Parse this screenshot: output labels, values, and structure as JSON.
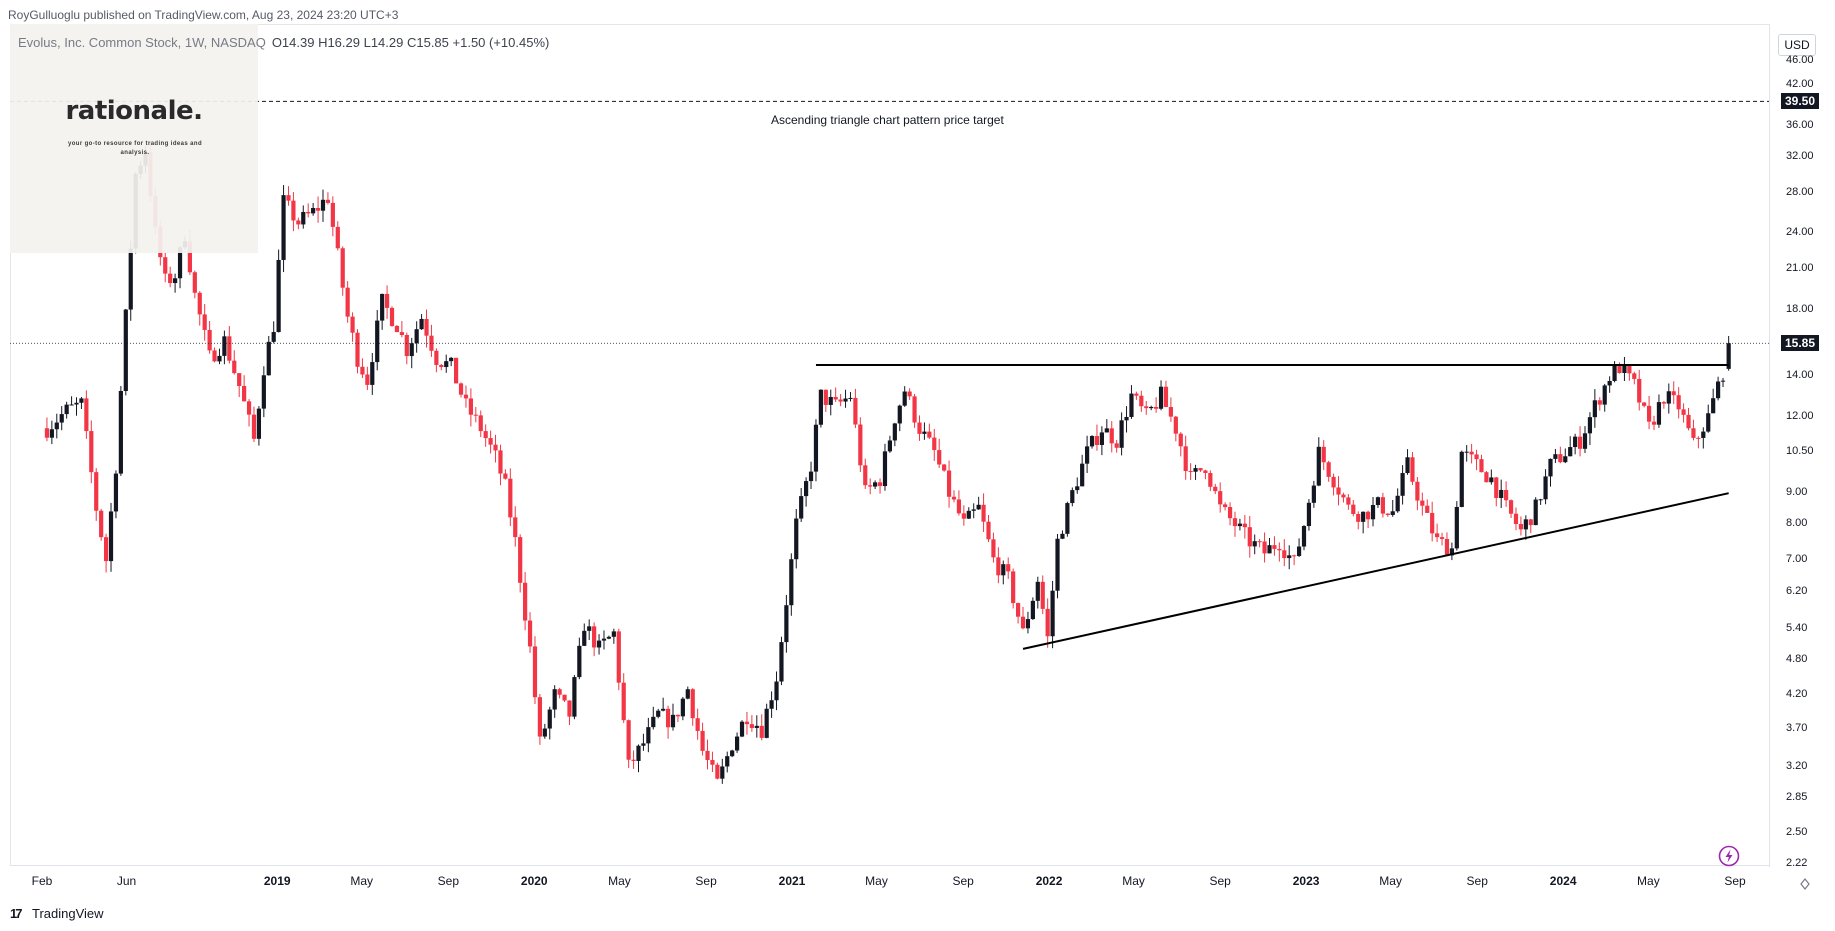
{
  "header": {
    "published_text": "RoyGulluoglu published on TradingView.com, Aug 23, 2024 23:20 UTC+3"
  },
  "symbol": {
    "name_text": "Evolus, Inc. Common Stock, 1W, NASDAQ",
    "ohlc_text": "O14.39  H16.29  L14.29  C15.85  +1.50 (+10.45%)"
  },
  "currency": "USD",
  "brand": {
    "name": "rationale.",
    "tagline": "your go-to resource for trading ideas and analysis."
  },
  "footer": {
    "logo_mark": "17",
    "logo_text": "TradingView"
  },
  "icons": {
    "settings": "auto-scale-icon",
    "alert": "lightning-bolt-icon",
    "logo": "tradingview-logo-icon"
  },
  "colors": {
    "up": "#131722",
    "down": "#f23645",
    "line": "#000000",
    "tag_bg": "#131722"
  },
  "annotations": {
    "target_label": "Ascending triangle chart pattern price target",
    "target_price": "39.50",
    "last_price": "15.85"
  },
  "chart_data": {
    "type": "candlestick",
    "scale": "log",
    "interval": "1W",
    "ylim": [
      2.1,
      50
    ],
    "y_ticks": [
      "46.00",
      "42.00",
      "36.00",
      "32.00",
      "28.00",
      "24.00",
      "21.00",
      "18.00",
      "14.00",
      "12.00",
      "10.50",
      "9.00",
      "8.00",
      "7.00",
      "6.20",
      "5.40",
      "4.80",
      "4.20",
      "3.70",
      "3.20",
      "2.85",
      "2.50",
      "2.22"
    ],
    "x_ticks": [
      {
        "label": "Feb",
        "date": "2018-02-01",
        "bold": false
      },
      {
        "label": "Jun",
        "date": "2018-06-01",
        "bold": false
      },
      {
        "label": "2019",
        "date": "2019-01-01",
        "bold": true
      },
      {
        "label": "May",
        "date": "2019-05-01",
        "bold": false
      },
      {
        "label": "Sep",
        "date": "2019-09-01",
        "bold": false
      },
      {
        "label": "2020",
        "date": "2020-01-01",
        "bold": true
      },
      {
        "label": "May",
        "date": "2020-05-01",
        "bold": false
      },
      {
        "label": "Sep",
        "date": "2020-09-01",
        "bold": false
      },
      {
        "label": "2021",
        "date": "2021-01-01",
        "bold": true
      },
      {
        "label": "May",
        "date": "2021-05-01",
        "bold": false
      },
      {
        "label": "Sep",
        "date": "2021-09-01",
        "bold": false
      },
      {
        "label": "2022",
        "date": "2022-01-01",
        "bold": true
      },
      {
        "label": "May",
        "date": "2022-05-01",
        "bold": false
      },
      {
        "label": "Sep",
        "date": "2022-09-01",
        "bold": false
      },
      {
        "label": "2023",
        "date": "2023-01-01",
        "bold": true
      },
      {
        "label": "May",
        "date": "2023-05-01",
        "bold": false
      },
      {
        "label": "Sep",
        "date": "2023-09-01",
        "bold": false
      },
      {
        "label": "2024",
        "date": "2024-01-01",
        "bold": true
      },
      {
        "label": "May",
        "date": "2024-05-01",
        "bold": false
      },
      {
        "label": "Sep",
        "date": "2024-09-01",
        "bold": false
      }
    ],
    "close_path": [
      [
        "2018-02-08",
        11.5
      ],
      [
        "2018-03-08",
        12.3
      ],
      [
        "2018-03-29",
        12.6
      ],
      [
        "2018-04-19",
        8.5
      ],
      [
        "2018-05-03",
        7.0
      ],
      [
        "2018-05-17",
        10.0
      ],
      [
        "2018-05-31",
        17.5
      ],
      [
        "2018-06-14",
        30.0
      ],
      [
        "2018-06-28",
        33.0
      ],
      [
        "2018-07-12",
        24.0
      ],
      [
        "2018-07-26",
        20.0
      ],
      [
        "2018-08-09",
        20.5
      ],
      [
        "2018-08-23",
        24.0
      ],
      [
        "2018-09-06",
        19.0
      ],
      [
        "2018-09-27",
        15.0
      ],
      [
        "2018-10-18",
        16.0
      ],
      [
        "2018-11-08",
        13.5
      ],
      [
        "2018-11-29",
        11.0
      ],
      [
        "2018-12-13",
        14.5
      ],
      [
        "2018-12-27",
        17.0
      ],
      [
        "2019-01-10",
        27.0
      ],
      [
        "2019-01-31",
        25.0
      ],
      [
        "2019-02-21",
        26.0
      ],
      [
        "2019-03-14",
        27.5
      ],
      [
        "2019-03-28",
        22.0
      ],
      [
        "2019-04-11",
        17.5
      ],
      [
        "2019-04-25",
        15.0
      ],
      [
        "2019-05-09",
        13.8
      ],
      [
        "2019-05-30",
        18.5
      ],
      [
        "2019-06-20",
        17.0
      ],
      [
        "2019-07-04",
        15.5
      ],
      [
        "2019-07-25",
        17.5
      ],
      [
        "2019-08-15",
        15.0
      ],
      [
        "2019-09-05",
        14.5
      ],
      [
        "2019-09-26",
        12.5
      ],
      [
        "2019-10-17",
        11.5
      ],
      [
        "2019-11-07",
        10.3
      ],
      [
        "2019-11-21",
        9.2
      ],
      [
        "2019-12-05",
        7.5
      ],
      [
        "2019-12-26",
        5.0
      ],
      [
        "2020-01-09",
        3.5
      ],
      [
        "2020-01-30",
        4.2
      ],
      [
        "2020-02-20",
        3.9
      ],
      [
        "2020-03-12",
        5.5
      ],
      [
        "2020-04-02",
        5.0
      ],
      [
        "2020-04-23",
        5.3
      ],
      [
        "2020-05-14",
        3.2
      ],
      [
        "2020-06-04",
        3.5
      ],
      [
        "2020-06-25",
        3.9
      ],
      [
        "2020-07-16",
        3.8
      ],
      [
        "2020-08-06",
        4.3
      ],
      [
        "2020-08-27",
        3.4
      ],
      [
        "2020-09-17",
        3.0
      ],
      [
        "2020-10-08",
        3.5
      ],
      [
        "2020-10-29",
        3.9
      ],
      [
        "2020-11-19",
        3.7
      ],
      [
        "2020-12-10",
        4.5
      ],
      [
        "2020-12-24",
        6.0
      ],
      [
        "2021-01-07",
        8.0
      ],
      [
        "2021-01-28",
        10.0
      ],
      [
        "2021-02-11",
        13.0
      ],
      [
        "2021-03-04",
        12.5
      ],
      [
        "2021-03-25",
        13.0
      ],
      [
        "2021-04-15",
        9.0
      ],
      [
        "2021-05-06",
        9.5
      ],
      [
        "2021-05-27",
        12.0
      ],
      [
        "2021-06-10",
        13.3
      ],
      [
        "2021-07-01",
        11.5
      ],
      [
        "2021-07-22",
        10.5
      ],
      [
        "2021-08-12",
        9.0
      ],
      [
        "2021-09-02",
        8.0
      ],
      [
        "2021-09-23",
        8.5
      ],
      [
        "2021-10-14",
        7.0
      ],
      [
        "2021-11-04",
        6.5
      ],
      [
        "2021-11-25",
        5.3
      ],
      [
        "2021-12-16",
        6.5
      ],
      [
        "2021-12-30",
        5.2
      ],
      [
        "2022-01-13",
        7.5
      ],
      [
        "2022-02-03",
        9.0
      ],
      [
        "2022-02-24",
        10.5
      ],
      [
        "2022-03-17",
        11.5
      ],
      [
        "2022-04-07",
        11.0
      ],
      [
        "2022-04-28",
        13.0
      ],
      [
        "2022-05-19",
        12.0
      ],
      [
        "2022-06-09",
        13.0
      ],
      [
        "2022-06-30",
        11.5
      ],
      [
        "2022-07-21",
        9.5
      ],
      [
        "2022-08-11",
        10.0
      ],
      [
        "2022-09-01",
        8.5
      ],
      [
        "2022-09-22",
        8.0
      ],
      [
        "2022-10-13",
        7.5
      ],
      [
        "2022-11-03",
        7.2
      ],
      [
        "2022-11-24",
        7.5
      ],
      [
        "2022-12-15",
        6.9
      ],
      [
        "2022-12-29",
        8.0
      ],
      [
        "2023-01-19",
        10.5
      ],
      [
        "2023-02-09",
        9.5
      ],
      [
        "2023-03-02",
        8.5
      ],
      [
        "2023-03-23",
        8.3
      ],
      [
        "2023-04-13",
        8.6
      ],
      [
        "2023-05-04",
        8.4
      ],
      [
        "2023-05-25",
        10.0
      ],
      [
        "2023-06-15",
        8.5
      ],
      [
        "2023-07-06",
        7.5
      ],
      [
        "2023-07-27",
        7.3
      ],
      [
        "2023-08-10",
        10.5
      ],
      [
        "2023-08-31",
        10.0
      ],
      [
        "2023-09-21",
        9.5
      ],
      [
        "2023-10-12",
        8.5
      ],
      [
        "2023-11-02",
        7.8
      ],
      [
        "2023-11-23",
        8.5
      ],
      [
        "2023-12-14",
        10.0
      ],
      [
        "2024-01-04",
        10.5
      ],
      [
        "2024-01-25",
        11.0
      ],
      [
        "2024-02-15",
        12.5
      ],
      [
        "2024-03-07",
        14.0
      ],
      [
        "2024-03-21",
        14.5
      ],
      [
        "2024-04-11",
        13.5
      ],
      [
        "2024-05-02",
        11.5
      ],
      [
        "2024-05-23",
        13.0
      ],
      [
        "2024-06-13",
        12.5
      ],
      [
        "2024-07-04",
        10.8
      ],
      [
        "2024-07-25",
        12.0
      ],
      [
        "2024-08-08",
        13.5
      ],
      [
        "2024-08-16",
        14.35
      ],
      [
        "2024-08-23",
        15.85
      ]
    ],
    "last_candle": {
      "date": "2024-08-23",
      "open": 14.39,
      "high": 16.29,
      "low": 14.29,
      "close": 15.85
    },
    "lines": [
      {
        "name": "resistance",
        "from": [
          "2021-02-04",
          14.6
        ],
        "to": [
          "2024-08-23",
          14.6
        ]
      },
      {
        "name": "ascending-support",
        "from": [
          "2021-11-25",
          5.0
        ],
        "to": [
          "2024-08-23",
          9.0
        ]
      }
    ]
  }
}
